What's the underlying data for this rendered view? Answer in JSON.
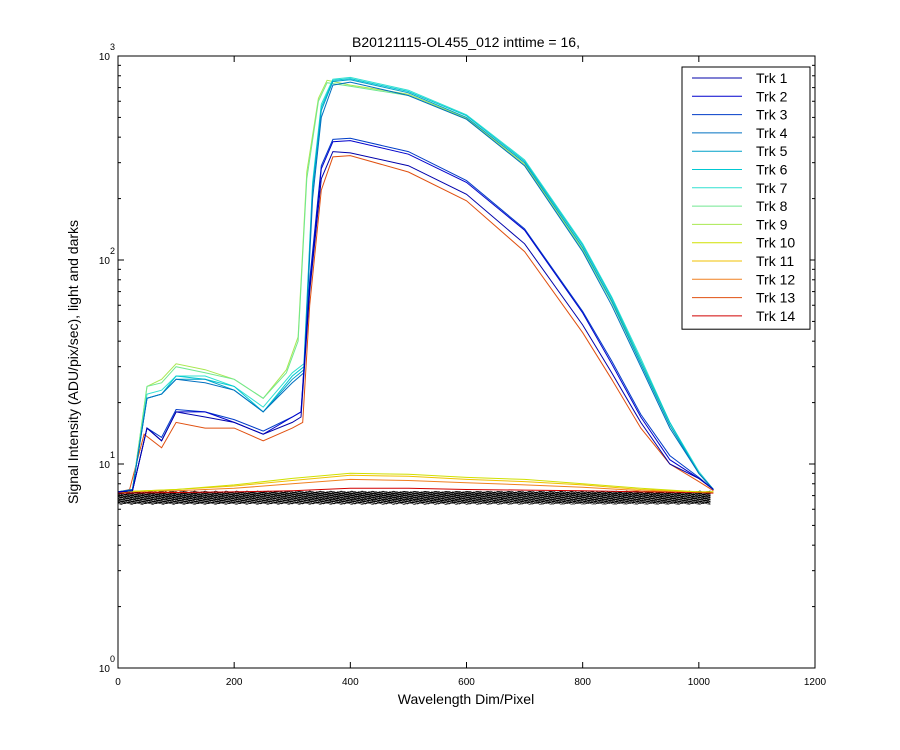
{
  "chart_data": {
    "type": "line",
    "title": "B20121115-OL455_012 inttime = 16,",
    "xlabel": "Wavelength Dim/Pixel",
    "ylabel": "Signal Intensity (ADU/pix/sec), light and darks",
    "xlim": [
      0,
      1200
    ],
    "ylim": [
      1,
      1000
    ],
    "yscale": "log",
    "grid": false,
    "legend_position": "top-right",
    "x_ticks": [
      "0",
      "200",
      "400",
      "600",
      "800",
      "1000",
      "1200"
    ],
    "y_ticks": [
      {
        "base": "10",
        "exp": "0"
      },
      {
        "base": "10",
        "exp": "1"
      },
      {
        "base": "10",
        "exp": "2"
      },
      {
        "base": "10",
        "exp": "3"
      }
    ],
    "series": [
      {
        "name": "Trk 1",
        "color": "#0000aa",
        "values": [
          [
            0,
            7.3
          ],
          [
            25,
            7.4
          ],
          [
            50,
            15
          ],
          [
            75,
            13
          ],
          [
            100,
            18
          ],
          [
            150,
            17
          ],
          [
            200,
            16
          ],
          [
            250,
            14
          ],
          [
            300,
            16
          ],
          [
            315,
            17
          ],
          [
            330,
            70
          ],
          [
            350,
            250
          ],
          [
            370,
            340
          ],
          [
            400,
            335
          ],
          [
            500,
            290
          ],
          [
            600,
            210
          ],
          [
            700,
            120
          ],
          [
            800,
            48
          ],
          [
            850,
            28
          ],
          [
            900,
            16
          ],
          [
            950,
            10
          ],
          [
            1000,
            8.5
          ],
          [
            1025,
            7.5
          ]
        ]
      },
      {
        "name": "Trk 2",
        "color": "#0000cd",
        "values": [
          [
            0,
            7.3
          ],
          [
            25,
            7.4
          ],
          [
            50,
            15
          ],
          [
            75,
            13
          ],
          [
            100,
            18
          ],
          [
            150,
            18
          ],
          [
            200,
            16
          ],
          [
            250,
            14
          ],
          [
            300,
            17
          ],
          [
            315,
            18
          ],
          [
            330,
            75
          ],
          [
            350,
            280
          ],
          [
            370,
            380
          ],
          [
            400,
            385
          ],
          [
            500,
            330
          ],
          [
            600,
            240
          ],
          [
            700,
            140
          ],
          [
            800,
            55
          ],
          [
            850,
            31
          ],
          [
            900,
            17
          ],
          [
            950,
            10.5
          ],
          [
            1000,
            8.5
          ],
          [
            1025,
            7.5
          ]
        ]
      },
      {
        "name": "Trk 3",
        "color": "#003cc8",
        "values": [
          [
            0,
            7.3
          ],
          [
            25,
            7.4
          ],
          [
            50,
            15
          ],
          [
            75,
            13.5
          ],
          [
            100,
            18.5
          ],
          [
            150,
            18
          ],
          [
            200,
            16.5
          ],
          [
            250,
            14.5
          ],
          [
            300,
            17
          ],
          [
            315,
            18
          ],
          [
            330,
            80
          ],
          [
            350,
            290
          ],
          [
            370,
            390
          ],
          [
            400,
            395
          ],
          [
            500,
            340
          ],
          [
            600,
            245
          ],
          [
            700,
            142
          ],
          [
            800,
            56
          ],
          [
            850,
            32
          ],
          [
            900,
            17.5
          ],
          [
            950,
            11
          ],
          [
            1000,
            8.6
          ],
          [
            1025,
            7.5
          ]
        ]
      },
      {
        "name": "Trk 4",
        "color": "#0070c0",
        "values": [
          [
            0,
            7.3
          ],
          [
            25,
            7.5
          ],
          [
            50,
            21
          ],
          [
            75,
            22
          ],
          [
            100,
            26
          ],
          [
            150,
            25
          ],
          [
            200,
            23
          ],
          [
            250,
            18
          ],
          [
            300,
            25
          ],
          [
            320,
            28
          ],
          [
            335,
            200
          ],
          [
            350,
            500
          ],
          [
            370,
            720
          ],
          [
            400,
            745
          ],
          [
            500,
            640
          ],
          [
            600,
            490
          ],
          [
            700,
            290
          ],
          [
            800,
            110
          ],
          [
            850,
            60
          ],
          [
            900,
            30
          ],
          [
            950,
            15
          ],
          [
            1000,
            9
          ],
          [
            1025,
            7.5
          ]
        ]
      },
      {
        "name": "Trk 5",
        "color": "#00a0c8",
        "values": [
          [
            0,
            7.3
          ],
          [
            25,
            7.5
          ],
          [
            50,
            21
          ],
          [
            75,
            22
          ],
          [
            100,
            26
          ],
          [
            150,
            26
          ],
          [
            200,
            23
          ],
          [
            250,
            18
          ],
          [
            300,
            26
          ],
          [
            320,
            29
          ],
          [
            335,
            220
          ],
          [
            350,
            540
          ],
          [
            370,
            750
          ],
          [
            400,
            765
          ],
          [
            500,
            660
          ],
          [
            600,
            500
          ],
          [
            700,
            300
          ],
          [
            800,
            115
          ],
          [
            850,
            63
          ],
          [
            900,
            31
          ],
          [
            950,
            15.5
          ],
          [
            1000,
            9
          ],
          [
            1025,
            7.5
          ]
        ]
      },
      {
        "name": "Trk 6",
        "color": "#00c8d2",
        "values": [
          [
            0,
            7.3
          ],
          [
            25,
            7.5
          ],
          [
            50,
            21
          ],
          [
            75,
            22
          ],
          [
            100,
            27
          ],
          [
            150,
            26
          ],
          [
            200,
            24
          ],
          [
            250,
            18
          ],
          [
            300,
            27
          ],
          [
            320,
            30
          ],
          [
            335,
            230
          ],
          [
            350,
            560
          ],
          [
            370,
            760
          ],
          [
            400,
            775
          ],
          [
            500,
            670
          ],
          [
            600,
            510
          ],
          [
            700,
            305
          ],
          [
            800,
            118
          ],
          [
            850,
            65
          ],
          [
            900,
            32
          ],
          [
            950,
            16
          ],
          [
            1000,
            9
          ],
          [
            1025,
            7.5
          ]
        ]
      },
      {
        "name": "Trk 7",
        "color": "#30e0d0",
        "values": [
          [
            0,
            7.3
          ],
          [
            25,
            7.5
          ],
          [
            50,
            22
          ],
          [
            75,
            23
          ],
          [
            100,
            27
          ],
          [
            150,
            27
          ],
          [
            200,
            24
          ],
          [
            250,
            19
          ],
          [
            300,
            28
          ],
          [
            320,
            31
          ],
          [
            335,
            240
          ],
          [
            350,
            580
          ],
          [
            370,
            770
          ],
          [
            400,
            785
          ],
          [
            500,
            680
          ],
          [
            600,
            515
          ],
          [
            700,
            310
          ],
          [
            800,
            120
          ],
          [
            850,
            66
          ],
          [
            900,
            33
          ],
          [
            950,
            16
          ],
          [
            1000,
            9.2
          ],
          [
            1025,
            7.5
          ]
        ]
      },
      {
        "name": "Trk 8",
        "color": "#70e890",
        "values": [
          [
            0,
            7.3
          ],
          [
            25,
            7.5
          ],
          [
            50,
            24
          ],
          [
            75,
            25
          ],
          [
            100,
            30
          ],
          [
            150,
            28
          ],
          [
            200,
            26
          ],
          [
            250,
            21
          ],
          [
            290,
            28
          ],
          [
            310,
            40
          ],
          [
            325,
            250
          ],
          [
            345,
            600
          ],
          [
            360,
            740
          ],
          [
            400,
            710
          ],
          [
            500,
            640
          ],
          [
            600,
            490
          ],
          [
            700,
            290
          ],
          [
            800,
            112
          ],
          [
            850,
            62
          ],
          [
            900,
            31
          ],
          [
            950,
            15.5
          ],
          [
            1000,
            9
          ],
          [
            1025,
            7.5
          ]
        ]
      },
      {
        "name": "Trk 9",
        "color": "#a8e850",
        "values": [
          [
            0,
            7.3
          ],
          [
            25,
            7.5
          ],
          [
            50,
            24
          ],
          [
            75,
            26
          ],
          [
            100,
            31
          ],
          [
            150,
            29
          ],
          [
            200,
            26
          ],
          [
            250,
            21
          ],
          [
            290,
            29
          ],
          [
            310,
            42
          ],
          [
            325,
            270
          ],
          [
            345,
            620
          ],
          [
            360,
            760
          ],
          [
            400,
            720
          ],
          [
            500,
            650
          ],
          [
            600,
            495
          ],
          [
            700,
            295
          ],
          [
            800,
            114
          ],
          [
            850,
            63
          ],
          [
            900,
            32
          ],
          [
            950,
            15.5
          ],
          [
            1000,
            9
          ],
          [
            1025,
            7.5
          ]
        ]
      },
      {
        "name": "Trk 10",
        "color": "#d0e000",
        "values": [
          [
            0,
            7.3
          ],
          [
            100,
            7.5
          ],
          [
            200,
            7.9
          ],
          [
            300,
            8.5
          ],
          [
            400,
            9.0
          ],
          [
            500,
            8.9
          ],
          [
            600,
            8.6
          ],
          [
            700,
            8.4
          ],
          [
            800,
            8.0
          ],
          [
            900,
            7.6
          ],
          [
            1000,
            7.3
          ],
          [
            1025,
            7.3
          ]
        ]
      },
      {
        "name": "Trk 11",
        "color": "#f0c000",
        "values": [
          [
            0,
            7.3
          ],
          [
            100,
            7.5
          ],
          [
            200,
            7.8
          ],
          [
            300,
            8.3
          ],
          [
            400,
            8.8
          ],
          [
            500,
            8.7
          ],
          [
            600,
            8.4
          ],
          [
            700,
            8.2
          ],
          [
            800,
            7.9
          ],
          [
            900,
            7.5
          ],
          [
            1000,
            7.3
          ],
          [
            1025,
            7.3
          ]
        ]
      },
      {
        "name": "Trk 12",
        "color": "#f08020",
        "values": [
          [
            0,
            7.3
          ],
          [
            100,
            7.4
          ],
          [
            200,
            7.6
          ],
          [
            300,
            8.0
          ],
          [
            400,
            8.4
          ],
          [
            500,
            8.3
          ],
          [
            600,
            8.1
          ],
          [
            700,
            7.9
          ],
          [
            800,
            7.7
          ],
          [
            900,
            7.4
          ],
          [
            1000,
            7.3
          ],
          [
            1025,
            7.3
          ]
        ]
      },
      {
        "name": "Trk 13",
        "color": "#e05010",
        "values": [
          [
            0,
            7.3
          ],
          [
            20,
            7.5
          ],
          [
            45,
            14
          ],
          [
            75,
            12
          ],
          [
            100,
            16
          ],
          [
            150,
            15
          ],
          [
            200,
            15
          ],
          [
            250,
            13
          ],
          [
            300,
            15
          ],
          [
            318,
            16
          ],
          [
            330,
            60
          ],
          [
            350,
            220
          ],
          [
            370,
            320
          ],
          [
            400,
            325
          ],
          [
            500,
            270
          ],
          [
            600,
            195
          ],
          [
            700,
            110
          ],
          [
            800,
            44
          ],
          [
            850,
            26
          ],
          [
            900,
            15
          ],
          [
            950,
            10
          ],
          [
            1000,
            8.2
          ],
          [
            1025,
            7.4
          ]
        ]
      },
      {
        "name": "Trk 14",
        "color": "#d00000",
        "values": [
          [
            0,
            7.2
          ],
          [
            100,
            7.25
          ],
          [
            200,
            7.3
          ],
          [
            300,
            7.4
          ],
          [
            400,
            7.6
          ],
          [
            500,
            7.6
          ],
          [
            600,
            7.5
          ],
          [
            700,
            7.45
          ],
          [
            800,
            7.4
          ],
          [
            900,
            7.3
          ],
          [
            1000,
            7.25
          ],
          [
            1025,
            7.2
          ]
        ]
      }
    ],
    "dark_series": {
      "color": "#000000",
      "x_range": [
        0,
        1025
      ],
      "y_range": [
        6.4,
        7.3
      ],
      "count": 28
    }
  }
}
